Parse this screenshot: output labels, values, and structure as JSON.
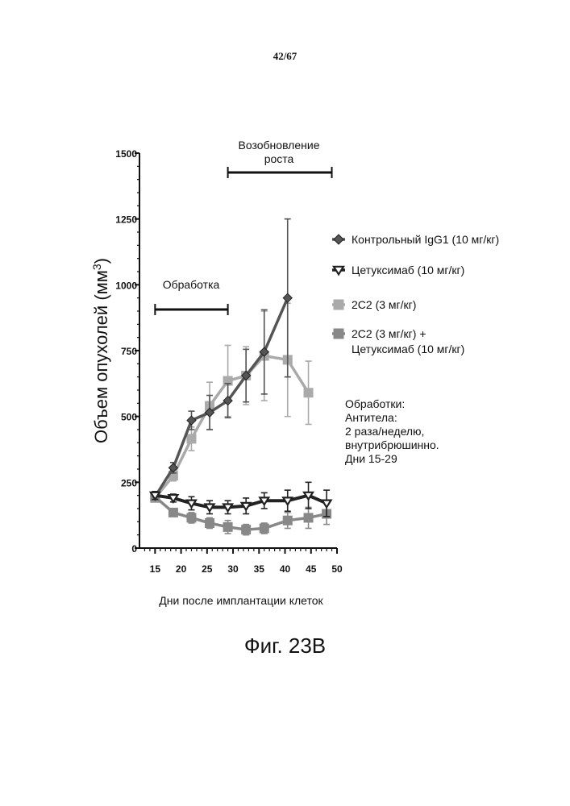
{
  "page_number": "42/67",
  "figure_caption": "Фиг. 23B",
  "notes": [
    "Обработки:",
    "Антитела:",
    "2 раза/неделю,",
    "внутрибрюшинно.",
    "Дни 15-29"
  ],
  "annotations": {
    "treatment": "Обработка",
    "regrowth_line1": "Возобновление",
    "regrowth_line2": "роста"
  },
  "chart_data": {
    "type": "line",
    "title": "",
    "xlabel": "Дни после имплантации клеток",
    "ylabel": "Объем опухолей (мм",
    "ylabel_superscript": "3",
    "ylabel_suffix": ")",
    "xlim": [
      12,
      50
    ],
    "ylim": [
      0,
      1500
    ],
    "xticks": [
      15,
      20,
      25,
      30,
      35,
      40,
      45,
      50
    ],
    "yticks": [
      0,
      250,
      500,
      750,
      1000,
      1250,
      1500
    ],
    "grid": false,
    "legend_position": "right",
    "treatment_period_days": [
      15,
      29
    ],
    "regrowth_period_days": [
      29,
      49
    ],
    "series": [
      {
        "name": "Контрольный IgG1 (10 мг/кг)",
        "color": "#555555",
        "marker": "diamond",
        "x": [
          15,
          18.5,
          22,
          25.5,
          29,
          32.5,
          36,
          40.5
        ],
        "y": [
          195,
          305,
          485,
          515,
          560,
          655,
          745,
          950
        ],
        "err": [
          15,
          20,
          35,
          65,
          65,
          100,
          160,
          300
        ]
      },
      {
        "name": "Цетуксимаб (10 мг/кг)",
        "color": "#222222",
        "marker": "triangle-down",
        "x": [
          15,
          18.5,
          22,
          25.5,
          29,
          32.5,
          36,
          40.5,
          44.5,
          48
        ],
        "y": [
          200,
          190,
          170,
          155,
          155,
          160,
          180,
          180,
          200,
          170
        ],
        "err": [
          15,
          15,
          25,
          25,
          25,
          30,
          30,
          40,
          50,
          50
        ]
      },
      {
        "name": "2C2 (3 мг/кг)",
        "color": "#aaaaaa",
        "marker": "square",
        "x": [
          15,
          18.5,
          22,
          25.5,
          29,
          32.5,
          36,
          40.5,
          44.5
        ],
        "y": [
          190,
          275,
          415,
          540,
          635,
          655,
          730,
          715,
          590
        ],
        "err": [
          15,
          20,
          45,
          90,
          135,
          110,
          170,
          215,
          120
        ]
      },
      {
        "name": "2C2 (3 мг/кг) +",
        "name_line2": "Цетуксимаб (10 мг/кг)",
        "color": "#888888",
        "marker": "square",
        "x": [
          15,
          18.5,
          22,
          25.5,
          29,
          32.5,
          36,
          40.5,
          44.5,
          48
        ],
        "y": [
          195,
          135,
          115,
          95,
          80,
          70,
          75,
          105,
          115,
          130
        ],
        "err": [
          10,
          15,
          20,
          20,
          25,
          20,
          20,
          30,
          40,
          40
        ]
      }
    ]
  }
}
